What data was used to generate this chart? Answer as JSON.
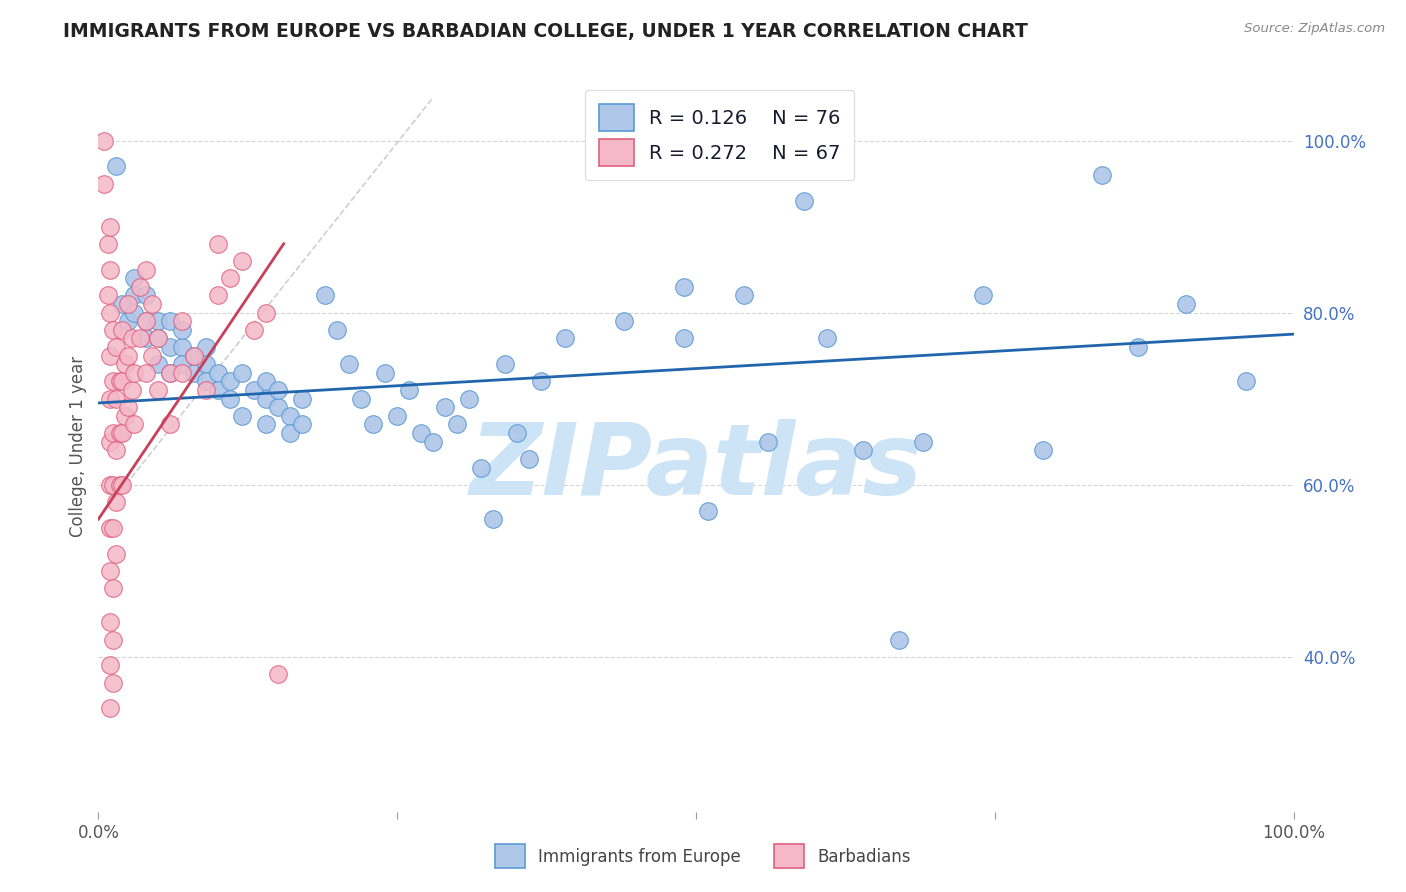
{
  "title": "IMMIGRANTS FROM EUROPE VS BARBADIAN COLLEGE, UNDER 1 YEAR CORRELATION CHART",
  "source": "Source: ZipAtlas.com",
  "ylabel": "College, Under 1 year",
  "legend_blue_r": "R = 0.126",
  "legend_blue_n": "N = 76",
  "legend_pink_r": "R = 0.272",
  "legend_pink_n": "N = 67",
  "blue_color": "#aec6e8",
  "blue_edge": "#5b9bd5",
  "pink_color": "#f4b8c8",
  "pink_edge": "#e06080",
  "trend_blue_color": "#2166ac",
  "trend_pink_color": "#c8405a",
  "watermark_text": "ZIPatlas",
  "watermark_color": "#cce4f5",
  "ytick_color": "#4472c4",
  "xtick_color": "#555555",
  "title_color": "#222222",
  "source_color": "#888888",
  "ylabel_color": "#555555",
  "grid_color": "#cccccc",
  "blue_scatter": [
    [
      0.015,
      0.97
    ],
    [
      0.02,
      0.81
    ],
    [
      0.025,
      0.79
    ],
    [
      0.03,
      0.84
    ],
    [
      0.03,
      0.82
    ],
    [
      0.03,
      0.8
    ],
    [
      0.04,
      0.79
    ],
    [
      0.04,
      0.77
    ],
    [
      0.04,
      0.82
    ],
    [
      0.05,
      0.79
    ],
    [
      0.05,
      0.77
    ],
    [
      0.05,
      0.74
    ],
    [
      0.06,
      0.79
    ],
    [
      0.06,
      0.76
    ],
    [
      0.06,
      0.73
    ],
    [
      0.07,
      0.76
    ],
    [
      0.07,
      0.74
    ],
    [
      0.07,
      0.78
    ],
    [
      0.08,
      0.73
    ],
    [
      0.08,
      0.75
    ],
    [
      0.09,
      0.74
    ],
    [
      0.09,
      0.72
    ],
    [
      0.09,
      0.76
    ],
    [
      0.1,
      0.73
    ],
    [
      0.1,
      0.71
    ],
    [
      0.11,
      0.72
    ],
    [
      0.11,
      0.7
    ],
    [
      0.12,
      0.68
    ],
    [
      0.12,
      0.73
    ],
    [
      0.13,
      0.71
    ],
    [
      0.14,
      0.72
    ],
    [
      0.14,
      0.7
    ],
    [
      0.14,
      0.67
    ],
    [
      0.15,
      0.69
    ],
    [
      0.15,
      0.71
    ],
    [
      0.16,
      0.68
    ],
    [
      0.16,
      0.66
    ],
    [
      0.17,
      0.7
    ],
    [
      0.17,
      0.67
    ],
    [
      0.19,
      0.82
    ],
    [
      0.2,
      0.78
    ],
    [
      0.21,
      0.74
    ],
    [
      0.22,
      0.7
    ],
    [
      0.23,
      0.67
    ],
    [
      0.24,
      0.73
    ],
    [
      0.25,
      0.68
    ],
    [
      0.26,
      0.71
    ],
    [
      0.27,
      0.66
    ],
    [
      0.28,
      0.65
    ],
    [
      0.29,
      0.69
    ],
    [
      0.3,
      0.67
    ],
    [
      0.31,
      0.7
    ],
    [
      0.32,
      0.62
    ],
    [
      0.33,
      0.56
    ],
    [
      0.34,
      0.74
    ],
    [
      0.35,
      0.66
    ],
    [
      0.36,
      0.63
    ],
    [
      0.37,
      0.72
    ],
    [
      0.39,
      0.77
    ],
    [
      0.44,
      0.79
    ],
    [
      0.49,
      0.77
    ],
    [
      0.49,
      0.83
    ],
    [
      0.51,
      0.57
    ],
    [
      0.54,
      0.82
    ],
    [
      0.56,
      0.65
    ],
    [
      0.59,
      0.93
    ],
    [
      0.61,
      0.77
    ],
    [
      0.64,
      0.64
    ],
    [
      0.67,
      0.42
    ],
    [
      0.69,
      0.65
    ],
    [
      0.74,
      0.82
    ],
    [
      0.79,
      0.64
    ],
    [
      0.84,
      0.96
    ],
    [
      0.87,
      0.76
    ],
    [
      0.91,
      0.81
    ],
    [
      0.96,
      0.72
    ]
  ],
  "pink_scatter": [
    [
      0.005,
      1.0
    ],
    [
      0.005,
      0.95
    ],
    [
      0.008,
      0.88
    ],
    [
      0.008,
      0.82
    ],
    [
      0.01,
      0.9
    ],
    [
      0.01,
      0.85
    ],
    [
      0.01,
      0.8
    ],
    [
      0.01,
      0.75
    ],
    [
      0.01,
      0.7
    ],
    [
      0.01,
      0.65
    ],
    [
      0.01,
      0.6
    ],
    [
      0.01,
      0.55
    ],
    [
      0.01,
      0.5
    ],
    [
      0.01,
      0.44
    ],
    [
      0.01,
      0.39
    ],
    [
      0.01,
      0.34
    ],
    [
      0.012,
      0.78
    ],
    [
      0.012,
      0.72
    ],
    [
      0.012,
      0.66
    ],
    [
      0.012,
      0.6
    ],
    [
      0.012,
      0.55
    ],
    [
      0.012,
      0.48
    ],
    [
      0.012,
      0.42
    ],
    [
      0.012,
      0.37
    ],
    [
      0.015,
      0.76
    ],
    [
      0.015,
      0.7
    ],
    [
      0.015,
      0.64
    ],
    [
      0.015,
      0.58
    ],
    [
      0.015,
      0.52
    ],
    [
      0.018,
      0.72
    ],
    [
      0.018,
      0.66
    ],
    [
      0.018,
      0.6
    ],
    [
      0.02,
      0.78
    ],
    [
      0.02,
      0.72
    ],
    [
      0.02,
      0.66
    ],
    [
      0.02,
      0.6
    ],
    [
      0.022,
      0.74
    ],
    [
      0.022,
      0.68
    ],
    [
      0.025,
      0.81
    ],
    [
      0.025,
      0.75
    ],
    [
      0.025,
      0.69
    ],
    [
      0.028,
      0.77
    ],
    [
      0.028,
      0.71
    ],
    [
      0.03,
      0.73
    ],
    [
      0.03,
      0.67
    ],
    [
      0.035,
      0.83
    ],
    [
      0.035,
      0.77
    ],
    [
      0.04,
      0.85
    ],
    [
      0.04,
      0.79
    ],
    [
      0.04,
      0.73
    ],
    [
      0.045,
      0.81
    ],
    [
      0.045,
      0.75
    ],
    [
      0.05,
      0.77
    ],
    [
      0.05,
      0.71
    ],
    [
      0.06,
      0.73
    ],
    [
      0.06,
      0.67
    ],
    [
      0.07,
      0.79
    ],
    [
      0.07,
      0.73
    ],
    [
      0.08,
      0.75
    ],
    [
      0.09,
      0.71
    ],
    [
      0.1,
      0.88
    ],
    [
      0.1,
      0.82
    ],
    [
      0.11,
      0.84
    ],
    [
      0.12,
      0.86
    ],
    [
      0.13,
      0.78
    ],
    [
      0.14,
      0.8
    ],
    [
      0.15,
      0.38
    ]
  ],
  "blue_trend_x": [
    0.0,
    1.0
  ],
  "blue_trend_y": [
    0.695,
    0.775
  ],
  "pink_trend_x": [
    0.0,
    0.155
  ],
  "pink_trend_y": [
    0.56,
    0.88
  ],
  "diag_line_x": [
    0.0,
    0.28
  ],
  "diag_line_y": [
    0.56,
    1.05
  ],
  "xlim": [
    0.0,
    1.0
  ],
  "ylim": [
    0.22,
    1.07
  ]
}
